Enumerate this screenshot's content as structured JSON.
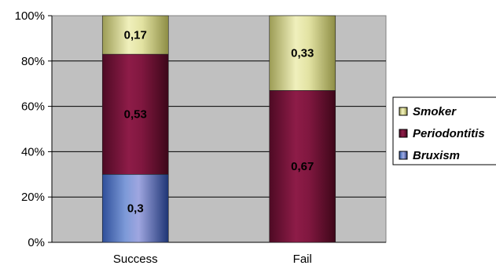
{
  "chart_data": {
    "type": "bar",
    "stacked": true,
    "percent_axis": true,
    "categories": [
      "Success",
      "Fail"
    ],
    "series": [
      {
        "name": "Bruxism",
        "values": [
          0.3,
          0
        ],
        "labels": [
          "0,3",
          ""
        ],
        "color": "#6f8fd0"
      },
      {
        "name": "Periodontitis",
        "values": [
          0.53,
          0.67
        ],
        "labels": [
          "0,53",
          "0,67"
        ],
        "color": "#8a1a44"
      },
      {
        "name": "Smoker",
        "values": [
          0.17,
          0.33
        ],
        "labels": [
          "0,17",
          "0,33"
        ],
        "color": "#e6e6a8"
      }
    ],
    "y_ticks": [
      "0%",
      "20%",
      "40%",
      "60%",
      "80%",
      "100%"
    ],
    "ylim": [
      0,
      1
    ],
    "grid": true,
    "legend_position": "right",
    "legend_order": [
      "Smoker",
      "Periodontitis",
      "Bruxism"
    ],
    "plot_background": "#c0c0c0"
  }
}
